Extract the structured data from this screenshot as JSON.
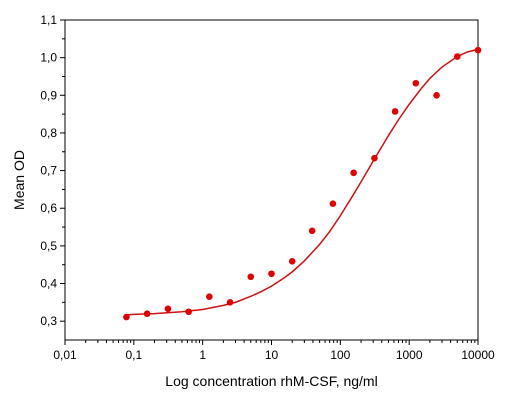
{
  "chart_data": {
    "type": "scatter",
    "title": "",
    "xlabel": "Log concentration rhM-CSF, ng/ml",
    "ylabel": "Mean OD",
    "x_scale": "log",
    "xlim": [
      0.01,
      10000
    ],
    "ylim": [
      0.25,
      1.1
    ],
    "x_ticks": [
      {
        "value": 0.01,
        "label": "0,01"
      },
      {
        "value": 0.1,
        "label": "0,1"
      },
      {
        "value": 1,
        "label": "1"
      },
      {
        "value": 10,
        "label": "10"
      },
      {
        "value": 100,
        "label": "100"
      },
      {
        "value": 1000,
        "label": "1000"
      },
      {
        "value": 10000,
        "label": "10000"
      }
    ],
    "y_ticks": [
      {
        "value": 0.3,
        "label": "0,3"
      },
      {
        "value": 0.4,
        "label": "0,4"
      },
      {
        "value": 0.5,
        "label": "0,5"
      },
      {
        "value": 0.6,
        "label": "0,6"
      },
      {
        "value": 0.7,
        "label": "0,7"
      },
      {
        "value": 0.8,
        "label": "0,8"
      },
      {
        "value": 0.9,
        "label": "0,9"
      },
      {
        "value": 1.0,
        "label": "1,0"
      },
      {
        "value": 1.1,
        "label": "1,1"
      }
    ],
    "grid": false,
    "colors": {
      "points": "#e00000",
      "curve": "#d01010",
      "axis": "#000000"
    },
    "series": [
      {
        "type": "scatter",
        "points": [
          {
            "x": 0.078,
            "y": 0.311
          },
          {
            "x": 0.156,
            "y": 0.32
          },
          {
            "x": 0.313,
            "y": 0.333
          },
          {
            "x": 0.625,
            "y": 0.325
          },
          {
            "x": 1.25,
            "y": 0.365
          },
          {
            "x": 2.5,
            "y": 0.35
          },
          {
            "x": 5,
            "y": 0.418
          },
          {
            "x": 10,
            "y": 0.426
          },
          {
            "x": 20,
            "y": 0.459
          },
          {
            "x": 39,
            "y": 0.54
          },
          {
            "x": 78,
            "y": 0.612
          },
          {
            "x": 156,
            "y": 0.694
          },
          {
            "x": 313,
            "y": 0.733
          },
          {
            "x": 625,
            "y": 0.857
          },
          {
            "x": 1250,
            "y": 0.932
          },
          {
            "x": 2500,
            "y": 0.9
          },
          {
            "x": 5000,
            "y": 1.003
          },
          {
            "x": 10000,
            "y": 1.02
          }
        ]
      },
      {
        "type": "line",
        "fit": "4PL",
        "curve": [
          {
            "x": 0.078,
            "y": 0.317
          },
          {
            "x": 0.1,
            "y": 0.318
          },
          {
            "x": 0.2,
            "y": 0.32
          },
          {
            "x": 0.5,
            "y": 0.325
          },
          {
            "x": 1,
            "y": 0.331
          },
          {
            "x": 2,
            "y": 0.342
          },
          {
            "x": 3,
            "y": 0.35
          },
          {
            "x": 5,
            "y": 0.366
          },
          {
            "x": 7,
            "y": 0.378
          },
          {
            "x": 10,
            "y": 0.393
          },
          {
            "x": 15,
            "y": 0.414
          },
          {
            "x": 20,
            "y": 0.431
          },
          {
            "x": 30,
            "y": 0.46
          },
          {
            "x": 50,
            "y": 0.504
          },
          {
            "x": 70,
            "y": 0.538
          },
          {
            "x": 100,
            "y": 0.58
          },
          {
            "x": 150,
            "y": 0.632
          },
          {
            "x": 200,
            "y": 0.67
          },
          {
            "x": 300,
            "y": 0.725
          },
          {
            "x": 500,
            "y": 0.793
          },
          {
            "x": 700,
            "y": 0.835
          },
          {
            "x": 1000,
            "y": 0.876
          },
          {
            "x": 1500,
            "y": 0.918
          },
          {
            "x": 2000,
            "y": 0.945
          },
          {
            "x": 3000,
            "y": 0.975
          },
          {
            "x": 5000,
            "y": 1.003
          },
          {
            "x": 7000,
            "y": 1.015
          },
          {
            "x": 10000,
            "y": 1.022
          }
        ]
      }
    ]
  }
}
